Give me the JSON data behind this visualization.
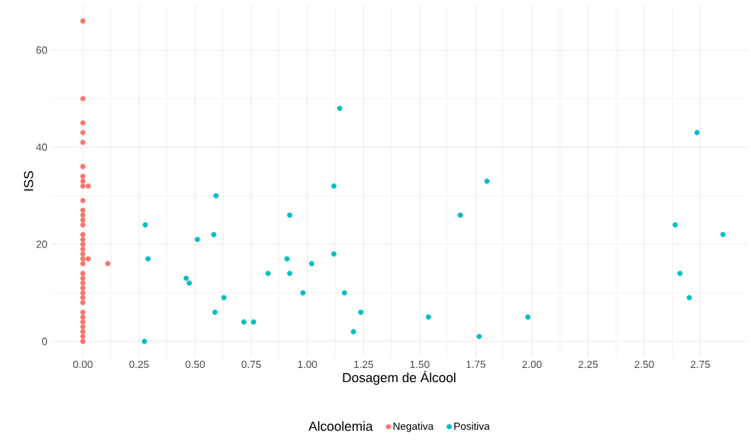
{
  "chart_data": {
    "type": "scatter",
    "xlabel": "Dosagem de Álcool",
    "ylabel": "ISS",
    "legend_title": "Alcoolemia",
    "xlim": [
      -0.143,
      2.96
    ],
    "ylim": [
      -3.3,
      69.3
    ],
    "xticks": [
      {
        "value": 0,
        "label": "0.00"
      },
      {
        "value": 0.25,
        "label": "0.25"
      },
      {
        "value": 0.5,
        "label": "0.50"
      },
      {
        "value": 0.75,
        "label": "0.75"
      },
      {
        "value": 1,
        "label": "1.00"
      },
      {
        "value": 1.25,
        "label": "1.25"
      },
      {
        "value": 1.5,
        "label": "1.50"
      },
      {
        "value": 1.75,
        "label": "1.75"
      },
      {
        "value": 2,
        "label": "2.00"
      },
      {
        "value": 2.25,
        "label": "2.25"
      },
      {
        "value": 2.5,
        "label": "2.50"
      },
      {
        "value": 2.75,
        "label": "2.75"
      }
    ],
    "yticks": [
      0,
      20,
      40,
      60
    ],
    "grid": true,
    "legend": "bottom",
    "marker": "circle",
    "series": [
      {
        "name": "Negativa",
        "color": "#f8766d",
        "x": [
          0,
          0,
          0,
          0,
          0,
          0,
          0,
          0,
          0,
          0,
          0,
          0,
          0,
          0,
          0,
          0,
          0,
          0,
          0,
          0,
          0,
          0,
          0,
          0,
          0,
          0,
          0,
          0,
          0,
          0,
          0,
          0,
          0,
          0,
          0,
          0.024,
          0.024,
          0.111
        ],
        "values": [
          66,
          50,
          45,
          43,
          41,
          36,
          34,
          33,
          32,
          29,
          27,
          26,
          25,
          24,
          22,
          21,
          20,
          19,
          18,
          17,
          16,
          14,
          13,
          12,
          11,
          10,
          9,
          8,
          6,
          5,
          4,
          3,
          2,
          1,
          0,
          32,
          17,
          16
        ]
      },
      {
        "name": "Positiva",
        "color": "#00bfc4",
        "x": [
          1.144,
          1.118,
          0.593,
          0.921,
          0.278,
          0.583,
          0.51,
          0.29,
          0.909,
          1.118,
          1.019,
          0.825,
          0.921,
          0.46,
          0.474,
          0.98,
          1.165,
          0.628,
          0.588,
          1.238,
          0.717,
          0.76,
          1.205,
          0.274,
          1.539,
          1.765,
          1.8,
          1.681,
          1.982,
          2.735,
          2.638,
          2.851,
          2.659,
          2.701
        ],
        "values": [
          48,
          32,
          30,
          26,
          24,
          22,
          21,
          17,
          17,
          18,
          16,
          14,
          14,
          13,
          12,
          10,
          10,
          9,
          6,
          6,
          4,
          4,
          2,
          0,
          5,
          1,
          33,
          26,
          5,
          43,
          24,
          22,
          14,
          9
        ]
      }
    ]
  }
}
